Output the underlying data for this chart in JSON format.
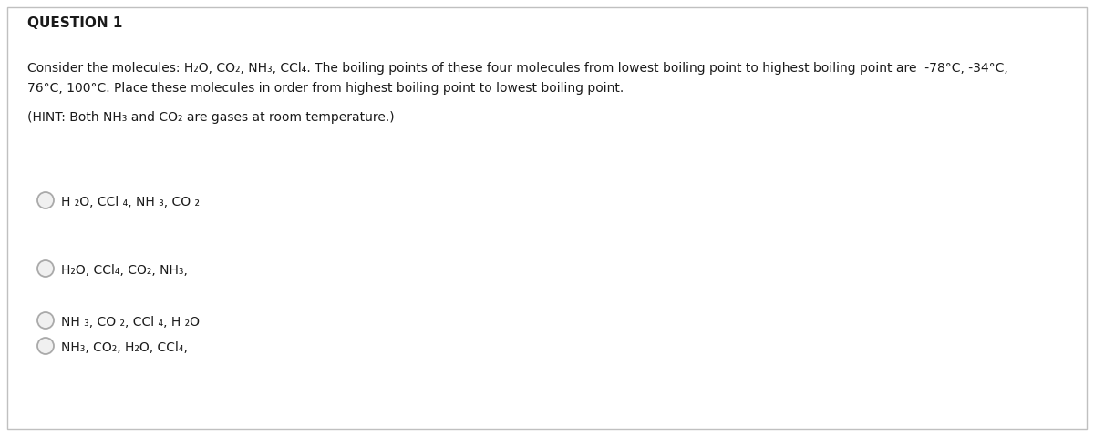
{
  "title": "QUESTION 1",
  "bg_color": "#ffffff",
  "text_color": "#1a1a1a",
  "border_color": "#c0c0c0",
  "circle_color": "#aaaaaa",
  "line1": "Consider the molecules: H₂O, CO₂, NH₃, CCl₄. The boiling points of these four molecules from lowest boiling point to highest boiling point are  -78°C, -34°C,",
  "line2": "76°C, 100°C. Place these molecules in order from highest boiling point to lowest boiling point.",
  "hint": "(HINT: Both NH₃ and CO₂ are gases at room temperature.)",
  "title_fontsize": 11,
  "body_fontsize": 10,
  "option_fontsize": 10,
  "option_texts": [
    "H ₂O, CCl ₄, NH ₃, CO ₂",
    "H₂O, CCl₄, CO₂, NH₃,",
    "NH ₃, CO ₂, CCl ₄, H ₂O",
    "NH₃, CO₂, H₂O, CCl₄,"
  ],
  "fig_width": 12.0,
  "fig_height": 4.79,
  "dpi": 100
}
